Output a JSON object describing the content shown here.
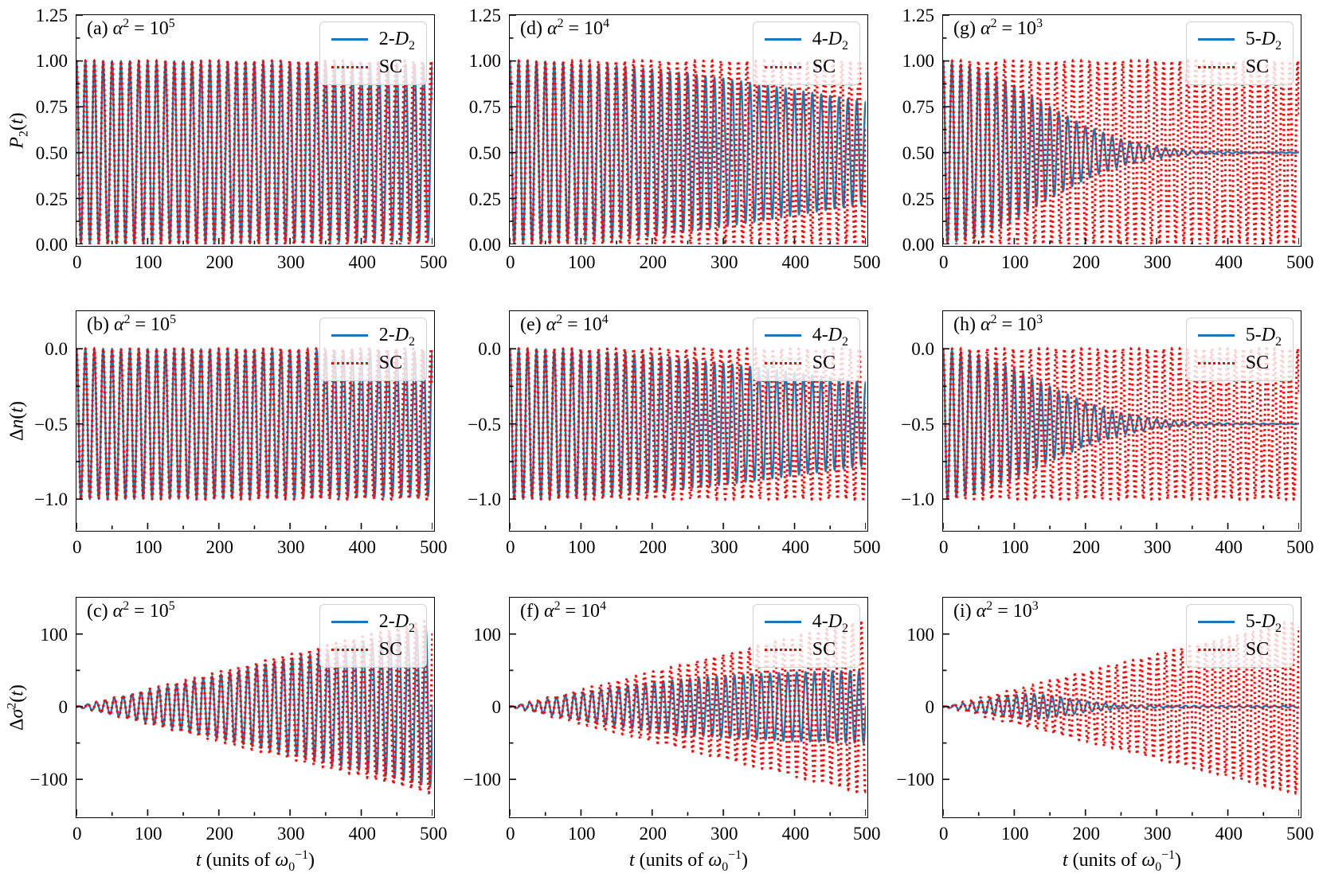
{
  "figure": {
    "xlabel_html": "<i>t</i> (units of <i>ω</i><sub>0</sub><sup>−1</sup>)",
    "palette": {
      "blue": "#1f77b4",
      "red": "#ff0000",
      "frame": "#000000",
      "legend_border": "#d2d2d2"
    }
  },
  "chart_data": [
    {
      "id": "a",
      "row": 0,
      "col": 0,
      "type": "line",
      "title_html": "(a) <i>α</i><sup>2</sup> = 10<sup>5</sup>",
      "ylabel_html": "<i>P</i><sub>2</sub>(<i>t</i>)",
      "xlim": [
        0,
        500
      ],
      "ylim": [
        0,
        1.25
      ],
      "xticks": [
        0,
        100,
        200,
        300,
        400,
        500
      ],
      "xtick_labels": [
        "0",
        "100",
        "200",
        "300",
        "400",
        "500"
      ],
      "yticks": [
        0,
        0.25,
        0.5,
        0.75,
        1.0,
        1.25
      ],
      "ytick_labels": [
        "0.00",
        "0.25",
        "0.50",
        "0.75",
        "1.00",
        "1.25"
      ],
      "legend": [
        {
          "label_html": "2-<i>D</i><sub>2</sub>",
          "color": "#1f77b4",
          "style": "solid"
        },
        {
          "label_html": "SC",
          "color": "#ff0000",
          "style": "dotted"
        }
      ],
      "series": [
        {
          "name": "2-D2",
          "color": "#1f77b4",
          "style": "solid",
          "model": "cosine",
          "center": 0.5,
          "period": 12.5,
          "chirp": 0,
          "envelope_t": [
            0,
            50,
            100,
            150,
            200,
            250,
            300,
            350,
            400,
            450,
            500
          ],
          "envelope_amp": [
            0.5,
            0.5,
            0.499,
            0.498,
            0.497,
            0.495,
            0.493,
            0.49,
            0.487,
            0.484,
            0.48
          ]
        },
        {
          "name": "SC",
          "color": "#ff0000",
          "style": "dotted",
          "model": "cosine",
          "center": 0.5,
          "period": 12.5,
          "chirp": 4e-06,
          "envelope_t": [
            0,
            500
          ],
          "envelope_amp": [
            0.5,
            0.5
          ]
        }
      ]
    },
    {
      "id": "d",
      "row": 0,
      "col": 1,
      "type": "line",
      "title_html": "(d) <i>α</i><sup>2</sup> = 10<sup>4</sup>",
      "xlim": [
        0,
        500
      ],
      "ylim": [
        0,
        1.25
      ],
      "xticks": [
        0,
        100,
        200,
        300,
        400,
        500
      ],
      "xtick_labels": [
        "0",
        "100",
        "200",
        "300",
        "400",
        "500"
      ],
      "yticks": [
        0,
        0.25,
        0.5,
        0.75,
        1.0,
        1.25
      ],
      "ytick_labels": [
        "0.00",
        "0.25",
        "0.50",
        "0.75",
        "1.00",
        "1.25"
      ],
      "legend": [
        {
          "label_html": "4-<i>D</i><sub>2</sub>",
          "color": "#1f77b4",
          "style": "solid"
        },
        {
          "label_html": "SC",
          "color": "#ff0000",
          "style": "dotted"
        }
      ],
      "series": [
        {
          "name": "4-D2",
          "color": "#1f77b4",
          "style": "solid",
          "model": "cosine",
          "center": 0.5,
          "period": 12.5,
          "chirp": 0,
          "envelope_t": [
            0,
            50,
            100,
            150,
            200,
            250,
            300,
            350,
            400,
            450,
            500
          ],
          "envelope_amp": [
            0.5,
            0.497,
            0.488,
            0.474,
            0.455,
            0.431,
            0.404,
            0.374,
            0.342,
            0.31,
            0.277
          ]
        },
        {
          "name": "SC",
          "color": "#ff0000",
          "style": "dotted",
          "model": "cosine",
          "center": 0.5,
          "period": 12.5,
          "chirp": 2e-05,
          "envelope_t": [
            0,
            500
          ],
          "envelope_amp": [
            0.5,
            0.5
          ]
        }
      ]
    },
    {
      "id": "g",
      "row": 0,
      "col": 2,
      "type": "line",
      "title_html": "(g) <i>α</i><sup>2</sup> = 10<sup>3</sup>",
      "xlim": [
        0,
        500
      ],
      "ylim": [
        0,
        1.25
      ],
      "xticks": [
        0,
        100,
        200,
        300,
        400,
        500
      ],
      "xtick_labels": [
        "0",
        "100",
        "200",
        "300",
        "400",
        "500"
      ],
      "yticks": [
        0,
        0.25,
        0.5,
        0.75,
        1.0,
        1.25
      ],
      "ytick_labels": [
        "0.00",
        "0.25",
        "0.50",
        "0.75",
        "1.00",
        "1.25"
      ],
      "legend": [
        {
          "label_html": "5-<i>D</i><sub>2</sub>",
          "color": "#1f77b4",
          "style": "solid"
        },
        {
          "label_html": "SC",
          "color": "#ff0000",
          "style": "dotted"
        }
      ],
      "series": [
        {
          "name": "5-D2",
          "color": "#1f77b4",
          "style": "solid",
          "model": "cosine",
          "center": 0.5,
          "period": 12.5,
          "chirp": 0,
          "envelope_t": [
            0,
            50,
            100,
            150,
            200,
            250,
            300,
            350,
            400,
            450,
            500
          ],
          "envelope_amp": [
            0.5,
            0.462,
            0.367,
            0.25,
            0.145,
            0.073,
            0.031,
            0.011,
            0.005,
            0.003,
            0.002
          ]
        },
        {
          "name": "SC",
          "color": "#ff0000",
          "style": "dotted",
          "model": "cosine",
          "center": 0.5,
          "period": 12.5,
          "chirp": 8e-05,
          "envelope_t": [
            0,
            500
          ],
          "envelope_amp": [
            0.5,
            0.5
          ]
        }
      ]
    },
    {
      "id": "b",
      "row": 1,
      "col": 0,
      "type": "line",
      "title_html": "(b) <i>α</i><sup>2</sup> = 10<sup>5</sup>",
      "ylabel_html": "Δ<i>n</i>(<i>t</i>)",
      "xlim": [
        0,
        500
      ],
      "ylim": [
        -1.2,
        0.25
      ],
      "xticks": [
        0,
        100,
        200,
        300,
        400,
        500
      ],
      "xtick_labels": [
        "0",
        "100",
        "200",
        "300",
        "400",
        "500"
      ],
      "yticks": [
        0,
        -0.5,
        -1.0
      ],
      "ytick_labels": [
        "0.0",
        "−0.5",
        "−1.0"
      ],
      "legend": [
        {
          "label_html": "2-<i>D</i><sub>2</sub>",
          "color": "#1f77b4",
          "style": "solid"
        },
        {
          "label_html": "SC",
          "color": "#ff0000",
          "style": "dotted"
        }
      ],
      "series": [
        {
          "name": "2-D2",
          "color": "#1f77b4",
          "style": "solid",
          "model": "cosine",
          "center": -0.5,
          "period": 12.5,
          "chirp": 0,
          "envelope_t": [
            0,
            50,
            100,
            150,
            200,
            250,
            300,
            350,
            400,
            450,
            500
          ],
          "envelope_amp": [
            0.5,
            0.5,
            0.499,
            0.498,
            0.497,
            0.495,
            0.493,
            0.49,
            0.487,
            0.484,
            0.48
          ]
        },
        {
          "name": "SC",
          "color": "#ff0000",
          "style": "dotted",
          "model": "cosine",
          "center": -0.5,
          "period": 12.5,
          "chirp": 4e-06,
          "envelope_t": [
            0,
            500
          ],
          "envelope_amp": [
            0.5,
            0.5
          ]
        }
      ]
    },
    {
      "id": "e",
      "row": 1,
      "col": 1,
      "type": "line",
      "title_html": "(e) <i>α</i><sup>2</sup> = 10<sup>4</sup>",
      "xlim": [
        0,
        500
      ],
      "ylim": [
        -1.2,
        0.25
      ],
      "xticks": [
        0,
        100,
        200,
        300,
        400,
        500
      ],
      "xtick_labels": [
        "0",
        "100",
        "200",
        "300",
        "400",
        "500"
      ],
      "yticks": [
        0,
        -0.5,
        -1.0
      ],
      "ytick_labels": [
        "0.0",
        "−0.5",
        "−1.0"
      ],
      "legend": [
        {
          "label_html": "4-<i>D</i><sub>2</sub>",
          "color": "#1f77b4",
          "style": "solid"
        },
        {
          "label_html": "SC",
          "color": "#ff0000",
          "style": "dotted"
        }
      ],
      "series": [
        {
          "name": "4-D2",
          "color": "#1f77b4",
          "style": "solid",
          "model": "cosine",
          "center": -0.5,
          "period": 12.5,
          "chirp": 0,
          "envelope_t": [
            0,
            50,
            100,
            150,
            200,
            250,
            300,
            350,
            400,
            450,
            500
          ],
          "envelope_amp": [
            0.5,
            0.497,
            0.488,
            0.474,
            0.455,
            0.431,
            0.404,
            0.374,
            0.342,
            0.31,
            0.277
          ]
        },
        {
          "name": "SC",
          "color": "#ff0000",
          "style": "dotted",
          "model": "cosine",
          "center": -0.5,
          "period": 12.5,
          "chirp": 2e-05,
          "envelope_t": [
            0,
            500
          ],
          "envelope_amp": [
            0.5,
            0.5
          ]
        }
      ]
    },
    {
      "id": "h",
      "row": 1,
      "col": 2,
      "type": "line",
      "title_html": "(h) <i>α</i><sup>2</sup> = 10<sup>3</sup>",
      "xlim": [
        0,
        500
      ],
      "ylim": [
        -1.2,
        0.25
      ],
      "xticks": [
        0,
        100,
        200,
        300,
        400,
        500
      ],
      "xtick_labels": [
        "0",
        "100",
        "200",
        "300",
        "400",
        "500"
      ],
      "yticks": [
        0,
        -0.5,
        -1.0
      ],
      "ytick_labels": [
        "0.0",
        "−0.5",
        "−1.0"
      ],
      "legend": [
        {
          "label_html": "5-<i>D</i><sub>2</sub>",
          "color": "#1f77b4",
          "style": "solid"
        },
        {
          "label_html": "SC",
          "color": "#ff0000",
          "style": "dotted"
        }
      ],
      "series": [
        {
          "name": "5-D2",
          "color": "#1f77b4",
          "style": "solid",
          "model": "cosine",
          "center": -0.5,
          "period": 12.5,
          "chirp": 0,
          "envelope_t": [
            0,
            50,
            100,
            150,
            200,
            250,
            300,
            350,
            400,
            450,
            500
          ],
          "envelope_amp": [
            0.5,
            0.462,
            0.367,
            0.25,
            0.145,
            0.073,
            0.031,
            0.011,
            0.005,
            0.003,
            0.002
          ]
        },
        {
          "name": "SC",
          "color": "#ff0000",
          "style": "dotted",
          "model": "cosine",
          "center": -0.5,
          "period": 12.5,
          "chirp": 8e-05,
          "envelope_t": [
            0,
            500
          ],
          "envelope_amp": [
            0.5,
            0.5
          ]
        }
      ]
    },
    {
      "id": "c",
      "row": 2,
      "col": 0,
      "type": "line",
      "title_html": "(c) <i>α</i><sup>2</sup> = 10<sup>5</sup>",
      "ylabel_html": "Δ<i>σ</i><sup>2</sup>(<i>t</i>)",
      "xlabel_html": "<i>t</i> (units of <i>ω</i><sub>0</sub><sup>−1</sup>)",
      "xlim": [
        0,
        500
      ],
      "ylim": [
        -150,
        150
      ],
      "xticks": [
        0,
        100,
        200,
        300,
        400,
        500
      ],
      "xtick_labels": [
        "0",
        "100",
        "200",
        "300",
        "400",
        "500"
      ],
      "yticks": [
        100,
        0,
        -100
      ],
      "ytick_labels": [
        "100",
        "0",
        "−100"
      ],
      "legend": [
        {
          "label_html": "2-<i>D</i><sub>2</sub>",
          "color": "#1f77b4",
          "style": "solid"
        },
        {
          "label_html": "SC",
          "color": "#ff0000",
          "style": "dotted"
        }
      ],
      "series": [
        {
          "name": "2-D2",
          "color": "#1f77b4",
          "style": "solid",
          "model": "sine",
          "center": 0,
          "period": 12.5,
          "chirp": 0,
          "envelope_t": [
            0,
            50,
            100,
            150,
            200,
            250,
            300,
            350,
            400,
            450,
            500
          ],
          "envelope_amp": [
            0,
            11,
            22,
            33,
            44,
            55,
            66,
            77,
            88,
            99,
            110
          ]
        },
        {
          "name": "SC",
          "color": "#ff0000",
          "style": "dotted",
          "model": "sine",
          "center": 0,
          "period": 12.5,
          "chirp": 4e-06,
          "envelope_t": [
            0,
            500
          ],
          "envelope_amp": [
            0,
            120
          ]
        }
      ]
    },
    {
      "id": "f",
      "row": 2,
      "col": 1,
      "type": "line",
      "title_html": "(f) <i>α</i><sup>2</sup> = 10<sup>4</sup>",
      "xlabel_html": "<i>t</i> (units of <i>ω</i><sub>0</sub><sup>−1</sup>)",
      "xlim": [
        0,
        500
      ],
      "ylim": [
        -150,
        150
      ],
      "xticks": [
        0,
        100,
        200,
        300,
        400,
        500
      ],
      "xtick_labels": [
        "0",
        "100",
        "200",
        "300",
        "400",
        "500"
      ],
      "yticks": [
        100,
        0,
        -100
      ],
      "ytick_labels": [
        "100",
        "0",
        "−100"
      ],
      "legend": [
        {
          "label_html": "4-<i>D</i><sub>2</sub>",
          "color": "#1f77b4",
          "style": "solid"
        },
        {
          "label_html": "SC",
          "color": "#ff0000",
          "style": "dotted"
        }
      ],
      "series": [
        {
          "name": "4-D2",
          "color": "#1f77b4",
          "style": "solid",
          "model": "sine",
          "center": 0,
          "period": 12.5,
          "chirp": 0,
          "envelope_t": [
            0,
            50,
            100,
            150,
            200,
            250,
            300,
            350,
            400,
            450,
            500
          ],
          "envelope_amp": [
            0,
            9.9,
            19.1,
            27.1,
            33.6,
            38.7,
            42.6,
            45.4,
            47.4,
            48.8,
            49.8
          ]
        },
        {
          "name": "SC",
          "color": "#ff0000",
          "style": "dotted",
          "model": "sine",
          "center": 0,
          "period": 12.5,
          "chirp": 2e-05,
          "envelope_t": [
            0,
            500
          ],
          "envelope_amp": [
            0,
            120
          ]
        }
      ]
    },
    {
      "id": "i",
      "row": 2,
      "col": 2,
      "type": "line",
      "title_html": "(i) <i>α</i><sup>2</sup> = 10<sup>3</sup>",
      "xlabel_html": "<i>t</i> (units of <i>ω</i><sub>0</sub><sup>−1</sup>)",
      "xlim": [
        0,
        500
      ],
      "ylim": [
        -150,
        150
      ],
      "xticks": [
        0,
        100,
        200,
        300,
        400,
        500
      ],
      "xtick_labels": [
        "0",
        "100",
        "200",
        "300",
        "400",
        "500"
      ],
      "yticks": [
        100,
        0,
        -100
      ],
      "ytick_labels": [
        "100",
        "0",
        "−100"
      ],
      "legend": [
        {
          "label_html": "5-<i>D</i><sub>2</sub>",
          "color": "#1f77b4",
          "style": "solid"
        },
        {
          "label_html": "SC",
          "color": "#ff0000",
          "style": "dotted"
        }
      ],
      "series": [
        {
          "name": "5-D2",
          "color": "#1f77b4",
          "style": "solid",
          "model": "sine",
          "center": 0,
          "period": 12.5,
          "chirp": 0,
          "envelope_t": [
            0,
            50,
            100,
            120,
            150,
            200,
            250,
            300,
            350,
            400,
            450,
            500
          ],
          "envelope_amp": [
            0,
            8,
            16,
            18.5,
            15.5,
            7.5,
            2.8,
            1.6,
            1.3,
            1.2,
            1.2,
            1.2
          ]
        },
        {
          "name": "SC",
          "color": "#ff0000",
          "style": "dotted",
          "model": "sine",
          "center": 0,
          "period": 12.5,
          "chirp": 8e-05,
          "envelope_t": [
            0,
            500
          ],
          "envelope_amp": [
            0,
            120
          ]
        }
      ]
    }
  ]
}
